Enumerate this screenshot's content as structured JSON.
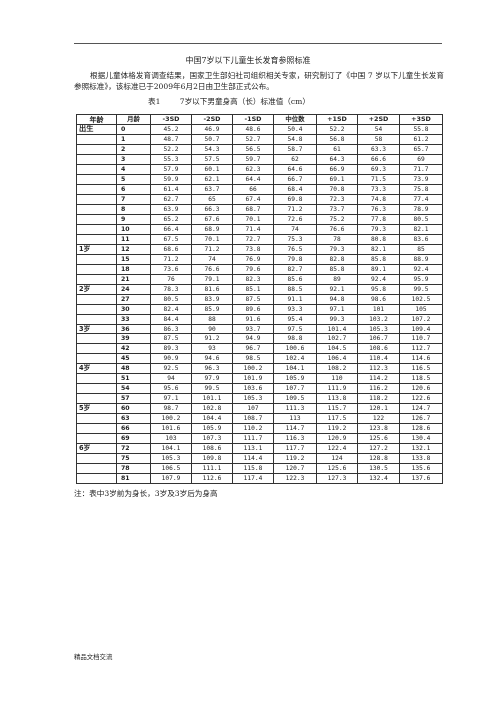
{
  "document": {
    "title": "中国7岁以下儿童生长发育参照标准",
    "intro": "根据儿童体格发育调查结果，国家卫生部妇社司组织相关专家，研究制订了《中国 7 岁以下儿童生长发育参照标准》，该标准已于2009年6月2日由卫生部正式公布。",
    "table_caption": "表1        7岁以下男童身高（长）标准值（cm）",
    "note": "注：表中3岁前为身长，3岁及3岁后为身高",
    "footer": "精品文档交流"
  },
  "table": {
    "headers": [
      "年龄",
      "月龄",
      "-3SD",
      "-2SD",
      "-1SD",
      "中位数",
      "+1SD",
      "+2SD",
      "+3SD"
    ],
    "rows": [
      {
        "age": "出生",
        "month": "0",
        "values": [
          "45.2",
          "46.9",
          "48.6",
          "50.4",
          "52.2",
          "54",
          "55.8"
        ]
      },
      {
        "age": "",
        "month": "1",
        "values": [
          "48.7",
          "50.7",
          "52.7",
          "54.8",
          "56.8",
          "58",
          "61.2"
        ]
      },
      {
        "age": "",
        "month": "2",
        "values": [
          "52.2",
          "54.3",
          "56.5",
          "58.7",
          "61",
          "63.3",
          "65.7"
        ]
      },
      {
        "age": "",
        "month": "3",
        "values": [
          "55.3",
          "57.5",
          "59.7",
          "62",
          "64.3",
          "66.6",
          "69"
        ]
      },
      {
        "age": "",
        "month": "4",
        "values": [
          "57.9",
          "60.1",
          "62.3",
          "64.6",
          "66.9",
          "69.3",
          "71.7"
        ]
      },
      {
        "age": "",
        "month": "5",
        "values": [
          "59.9",
          "62.1",
          "64.4",
          "66.7",
          "69.1",
          "71.5",
          "73.9"
        ]
      },
      {
        "age": "",
        "month": "6",
        "values": [
          "61.4",
          "63.7",
          "66",
          "68.4",
          "70.8",
          "73.3",
          "75.8"
        ]
      },
      {
        "age": "",
        "month": "7",
        "values": [
          "62.7",
          "65",
          "67.4",
          "69.8",
          "72.3",
          "74.8",
          "77.4"
        ]
      },
      {
        "age": "",
        "month": "8",
        "values": [
          "63.9",
          "66.3",
          "68.7",
          "71.2",
          "73.7",
          "76.3",
          "78.9"
        ]
      },
      {
        "age": "",
        "month": "9",
        "values": [
          "65.2",
          "67.6",
          "70.1",
          "72.6",
          "75.2",
          "77.8",
          "80.5"
        ]
      },
      {
        "age": "",
        "month": "10",
        "values": [
          "66.4",
          "68.9",
          "71.4",
          "74",
          "76.6",
          "79.3",
          "82.1"
        ]
      },
      {
        "age": "",
        "month": "11",
        "values": [
          "67.5",
          "70.1",
          "72.7",
          "75.3",
          "78",
          "80.8",
          "83.6"
        ]
      },
      {
        "age": "1岁",
        "month": "12",
        "values": [
          "68.6",
          "71.2",
          "73.8",
          "76.5",
          "79.3",
          "82.1",
          "85"
        ]
      },
      {
        "age": "",
        "month": "15",
        "values": [
          "71.2",
          "74",
          "76.9",
          "79.8",
          "82.8",
          "85.8",
          "88.9"
        ]
      },
      {
        "age": "",
        "month": "18",
        "values": [
          "73.6",
          "76.6",
          "79.6",
          "82.7",
          "85.8",
          "89.1",
          "92.4"
        ]
      },
      {
        "age": "",
        "month": "21",
        "values": [
          "76",
          "79.1",
          "82.3",
          "85.6",
          "89",
          "92.4",
          "95.9"
        ]
      },
      {
        "age": "2岁",
        "month": "24",
        "values": [
          "78.3",
          "81.6",
          "85.1",
          "88.5",
          "92.1",
          "95.8",
          "99.5"
        ]
      },
      {
        "age": "",
        "month": "27",
        "values": [
          "80.5",
          "83.9",
          "87.5",
          "91.1",
          "94.8",
          "98.6",
          "102.5"
        ]
      },
      {
        "age": "",
        "month": "30",
        "values": [
          "82.4",
          "85.9",
          "89.6",
          "93.3",
          "97.1",
          "101",
          "105"
        ]
      },
      {
        "age": "",
        "month": "33",
        "values": [
          "84.4",
          "88",
          "91.6",
          "95.4",
          "99.3",
          "103.2",
          "107.2"
        ]
      },
      {
        "age": "3岁",
        "month": "36",
        "values": [
          "86.3",
          "90",
          "93.7",
          "97.5",
          "101.4",
          "105.3",
          "109.4"
        ]
      },
      {
        "age": "",
        "month": "39",
        "values": [
          "87.5",
          "91.2",
          "94.9",
          "98.8",
          "102.7",
          "106.7",
          "110.7"
        ]
      },
      {
        "age": "",
        "month": "42",
        "values": [
          "89.3",
          "93",
          "96.7",
          "100.6",
          "104.5",
          "108.6",
          "112.7"
        ]
      },
      {
        "age": "",
        "month": "45",
        "values": [
          "90.9",
          "94.6",
          "98.5",
          "102.4",
          "106.4",
          "110.4",
          "114.6"
        ]
      },
      {
        "age": "4岁",
        "month": "48",
        "values": [
          "92.5",
          "96.3",
          "100.2",
          "104.1",
          "108.2",
          "112.3",
          "116.5"
        ]
      },
      {
        "age": "",
        "month": "51",
        "values": [
          "94",
          "97.9",
          "101.9",
          "105.9",
          "110",
          "114.2",
          "118.5"
        ]
      },
      {
        "age": "",
        "month": "54",
        "values": [
          "95.6",
          "99.5",
          "103.6",
          "107.7",
          "111.9",
          "116.2",
          "120.6"
        ]
      },
      {
        "age": "",
        "month": "57",
        "values": [
          "97.1",
          "101.1",
          "105.3",
          "109.5",
          "113.8",
          "118.2",
          "122.6"
        ]
      },
      {
        "age": "5岁",
        "month": "60",
        "values": [
          "98.7",
          "102.8",
          "107",
          "111.3",
          "115.7",
          "120.1",
          "124.7"
        ]
      },
      {
        "age": "",
        "month": "63",
        "values": [
          "100.2",
          "104.4",
          "108.7",
          "113",
          "117.5",
          "122",
          "126.7"
        ]
      },
      {
        "age": "",
        "month": "66",
        "values": [
          "101.6",
          "105.9",
          "110.2",
          "114.7",
          "119.2",
          "123.8",
          "128.6"
        ]
      },
      {
        "age": "",
        "month": "69",
        "values": [
          "103",
          "107.3",
          "111.7",
          "116.3",
          "120.9",
          "125.6",
          "130.4"
        ]
      },
      {
        "age": "6岁",
        "month": "72",
        "values": [
          "104.1",
          "108.6",
          "113.1",
          "117.7",
          "122.4",
          "127.2",
          "132.1"
        ]
      },
      {
        "age": "",
        "month": "75",
        "values": [
          "105.3",
          "109.8",
          "114.4",
          "119.2",
          "124",
          "128.8",
          "133.8"
        ]
      },
      {
        "age": "",
        "month": "78",
        "values": [
          "106.5",
          "111.1",
          "115.8",
          "120.7",
          "125.6",
          "130.5",
          "135.6"
        ]
      },
      {
        "age": "",
        "month": "81",
        "values": [
          "107.9",
          "112.6",
          "117.4",
          "122.3",
          "127.3",
          "132.4",
          "137.6"
        ]
      }
    ]
  }
}
